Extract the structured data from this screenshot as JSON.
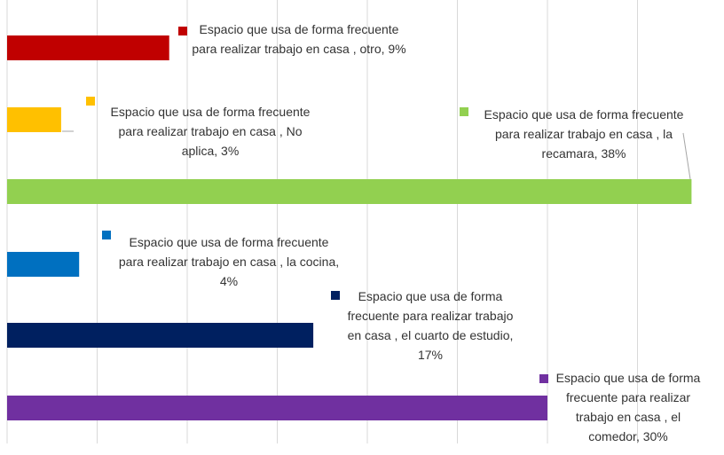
{
  "chart_data": {
    "type": "bar",
    "orientation": "horizontal",
    "values": [
      9,
      3,
      38,
      4,
      17,
      30
    ],
    "value_labels": [
      "Espacio que usa de forma frecuente para realizar trabajo en casa , otro, 9%",
      "Espacio que usa de forma frecuente para realizar trabajo en casa , No aplica, 3%",
      "Espacio que usa de forma frecuente para realizar trabajo en casa , la recamara, 38%",
      "Espacio que usa de forma frecuente para realizar trabajo en casa , la cocina, 4%",
      "Espacio que usa de forma frecuente para realizar trabajo en casa , el cuarto de estudio, 17%",
      "Espacio que usa de forma frecuente para realizar trabajo en casa , el comedor, 30%"
    ],
    "colors": [
      "#c00000",
      "#ffc000",
      "#92d050",
      "#0070c0",
      "#002060",
      "#7030a0"
    ],
    "xlim": [
      0,
      40
    ],
    "xticks": [
      0,
      5,
      10,
      15,
      20,
      25,
      30,
      35,
      40
    ],
    "grid": true
  }
}
